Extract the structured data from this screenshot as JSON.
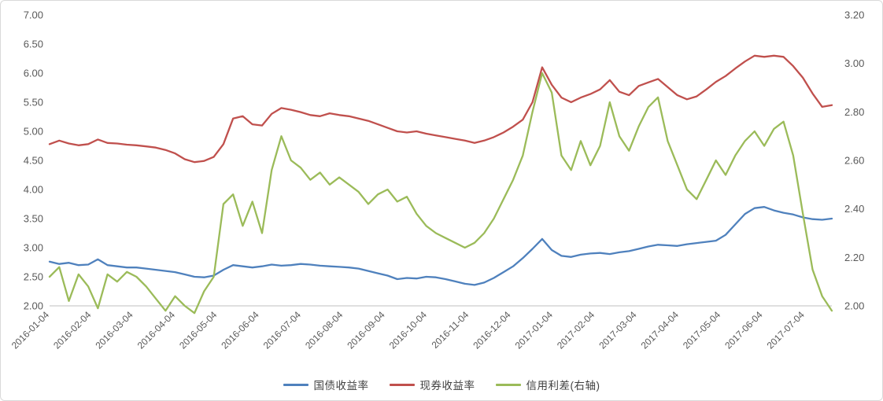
{
  "chart_data": {
    "type": "line",
    "title": "",
    "grid": false,
    "legend_position": "bottom",
    "axis_text_color": "#595959",
    "axis_line_color": "#bfbfbf",
    "left_axis": {
      "min": 2.0,
      "max": 7.0,
      "step": 0.5,
      "ticks": [
        "7.00",
        "6.50",
        "6.00",
        "5.50",
        "5.00",
        "4.50",
        "4.00",
        "3.50",
        "3.00",
        "2.50",
        "2.00"
      ]
    },
    "right_axis": {
      "min": 2.0,
      "max": 3.2,
      "step": 0.2,
      "ticks": [
        "3.20",
        "3.00",
        "2.80",
        "2.60",
        "2.40",
        "2.20",
        "2.00"
      ]
    },
    "x_labels": [
      "2016-01-04",
      "2016-02-04",
      "2016-03-04",
      "2016-04-04",
      "2016-05-04",
      "2016-06-04",
      "2016-07-04",
      "2016-08-04",
      "2016-09-04",
      "2016-10-04",
      "2016-11-04",
      "2016-12-04",
      "2017-01-04",
      "2017-02-04",
      "2017-03-04",
      "2017-04-04",
      "2017-05-04",
      "2017-06-04",
      "2017-07-04"
    ],
    "x_label_interval_weeks": 4.345,
    "series": [
      {
        "name": "国债收益率",
        "axis": "left",
        "color": "#4F81BD",
        "values": [
          2.76,
          2.72,
          2.74,
          2.7,
          2.71,
          2.8,
          2.7,
          2.68,
          2.66,
          2.66,
          2.64,
          2.62,
          2.6,
          2.58,
          2.54,
          2.5,
          2.49,
          2.52,
          2.62,
          2.7,
          2.68,
          2.66,
          2.68,
          2.71,
          2.69,
          2.7,
          2.72,
          2.71,
          2.69,
          2.68,
          2.67,
          2.66,
          2.64,
          2.6,
          2.56,
          2.52,
          2.46,
          2.48,
          2.47,
          2.5,
          2.49,
          2.46,
          2.42,
          2.38,
          2.36,
          2.4,
          2.48,
          2.58,
          2.68,
          2.82,
          2.98,
          3.15,
          2.96,
          2.86,
          2.84,
          2.88,
          2.9,
          2.91,
          2.89,
          2.92,
          2.94,
          2.98,
          3.02,
          3.05,
          3.04,
          3.03,
          3.06,
          3.08,
          3.1,
          3.12,
          3.22,
          3.4,
          3.58,
          3.68,
          3.7,
          3.64,
          3.6,
          3.57,
          3.52,
          3.49,
          3.48,
          3.5
        ]
      },
      {
        "name": "现券收益率",
        "axis": "left",
        "color": "#C0504D",
        "values": [
          4.78,
          4.84,
          4.79,
          4.76,
          4.78,
          4.86,
          4.8,
          4.79,
          4.77,
          4.76,
          4.74,
          4.72,
          4.68,
          4.62,
          4.52,
          4.47,
          4.49,
          4.56,
          4.78,
          5.22,
          5.26,
          5.12,
          5.1,
          5.3,
          5.4,
          5.37,
          5.33,
          5.28,
          5.26,
          5.31,
          5.28,
          5.26,
          5.22,
          5.18,
          5.12,
          5.06,
          5.0,
          4.98,
          5.0,
          4.96,
          4.93,
          4.9,
          4.87,
          4.84,
          4.8,
          4.84,
          4.9,
          4.98,
          5.08,
          5.2,
          5.5,
          6.1,
          5.8,
          5.58,
          5.5,
          5.58,
          5.64,
          5.72,
          5.88,
          5.68,
          5.62,
          5.78,
          5.84,
          5.9,
          5.76,
          5.62,
          5.55,
          5.6,
          5.72,
          5.85,
          5.95,
          6.08,
          6.2,
          6.3,
          6.28,
          6.3,
          6.28,
          6.12,
          5.92,
          5.65,
          5.42,
          5.45
        ]
      },
      {
        "name": "信用利差(右轴)",
        "axis": "right",
        "color": "#9BBB59",
        "values": [
          2.12,
          2.16,
          2.02,
          2.13,
          2.08,
          1.99,
          2.13,
          2.1,
          2.14,
          2.12,
          2.08,
          2.03,
          1.98,
          2.04,
          2.0,
          1.97,
          2.06,
          2.12,
          2.42,
          2.46,
          2.33,
          2.43,
          2.3,
          2.56,
          2.7,
          2.6,
          2.57,
          2.52,
          2.55,
          2.5,
          2.53,
          2.5,
          2.47,
          2.42,
          2.46,
          2.48,
          2.43,
          2.45,
          2.38,
          2.33,
          2.3,
          2.28,
          2.26,
          2.24,
          2.26,
          2.3,
          2.36,
          2.44,
          2.52,
          2.62,
          2.8,
          2.96,
          2.88,
          2.62,
          2.56,
          2.68,
          2.58,
          2.66,
          2.84,
          2.7,
          2.64,
          2.74,
          2.82,
          2.86,
          2.68,
          2.58,
          2.48,
          2.44,
          2.52,
          2.6,
          2.54,
          2.62,
          2.68,
          2.72,
          2.66,
          2.73,
          2.76,
          2.62,
          2.38,
          2.15,
          2.04,
          1.98
        ]
      }
    ]
  }
}
